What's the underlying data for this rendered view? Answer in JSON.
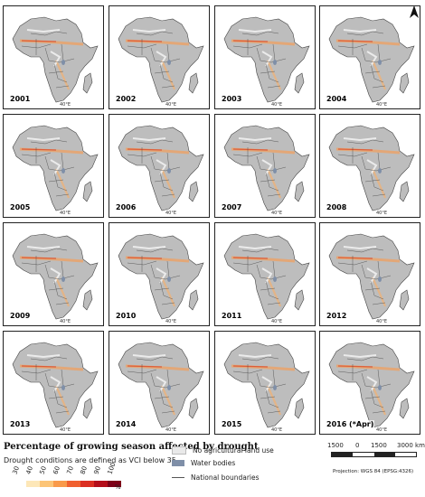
{
  "map": {
    "years": [
      "2001",
      "2002",
      "2003",
      "2004",
      "2005",
      "2006",
      "2007",
      "2008",
      "2009",
      "2010",
      "2011",
      "2012",
      "2013",
      "2014",
      "2015",
      "2016 (*Apr)"
    ],
    "graticule_label": "40°E",
    "land_color": "#bdbdbd",
    "no_agri_color": "#ffffff",
    "water_color": "#7f8fa8",
    "border_color": "#444444"
  },
  "legend": {
    "title": "Percentage of growing season affected by drought",
    "subtitle": "Drought conditions are defined as VCI below 35.",
    "ramp_labels": [
      "30",
      "40",
      "50",
      "60",
      "70",
      "80",
      "90",
      "100"
    ],
    "ramp_colors": [
      "#ffffff",
      "#fde7b8",
      "#fcc476",
      "#f99a4a",
      "#f0602f",
      "#db2f22",
      "#b40e1b",
      "#7e0018"
    ],
    "unit": "%",
    "items": {
      "no_agri": "No agricultural land use",
      "water": "Water bodies",
      "borders": "National boundaries"
    },
    "scale_labels": [
      "1500",
      "0",
      "1500",
      "3000 km"
    ],
    "projection": "Projection: WGS 84 (EPSG:4326)"
  }
}
